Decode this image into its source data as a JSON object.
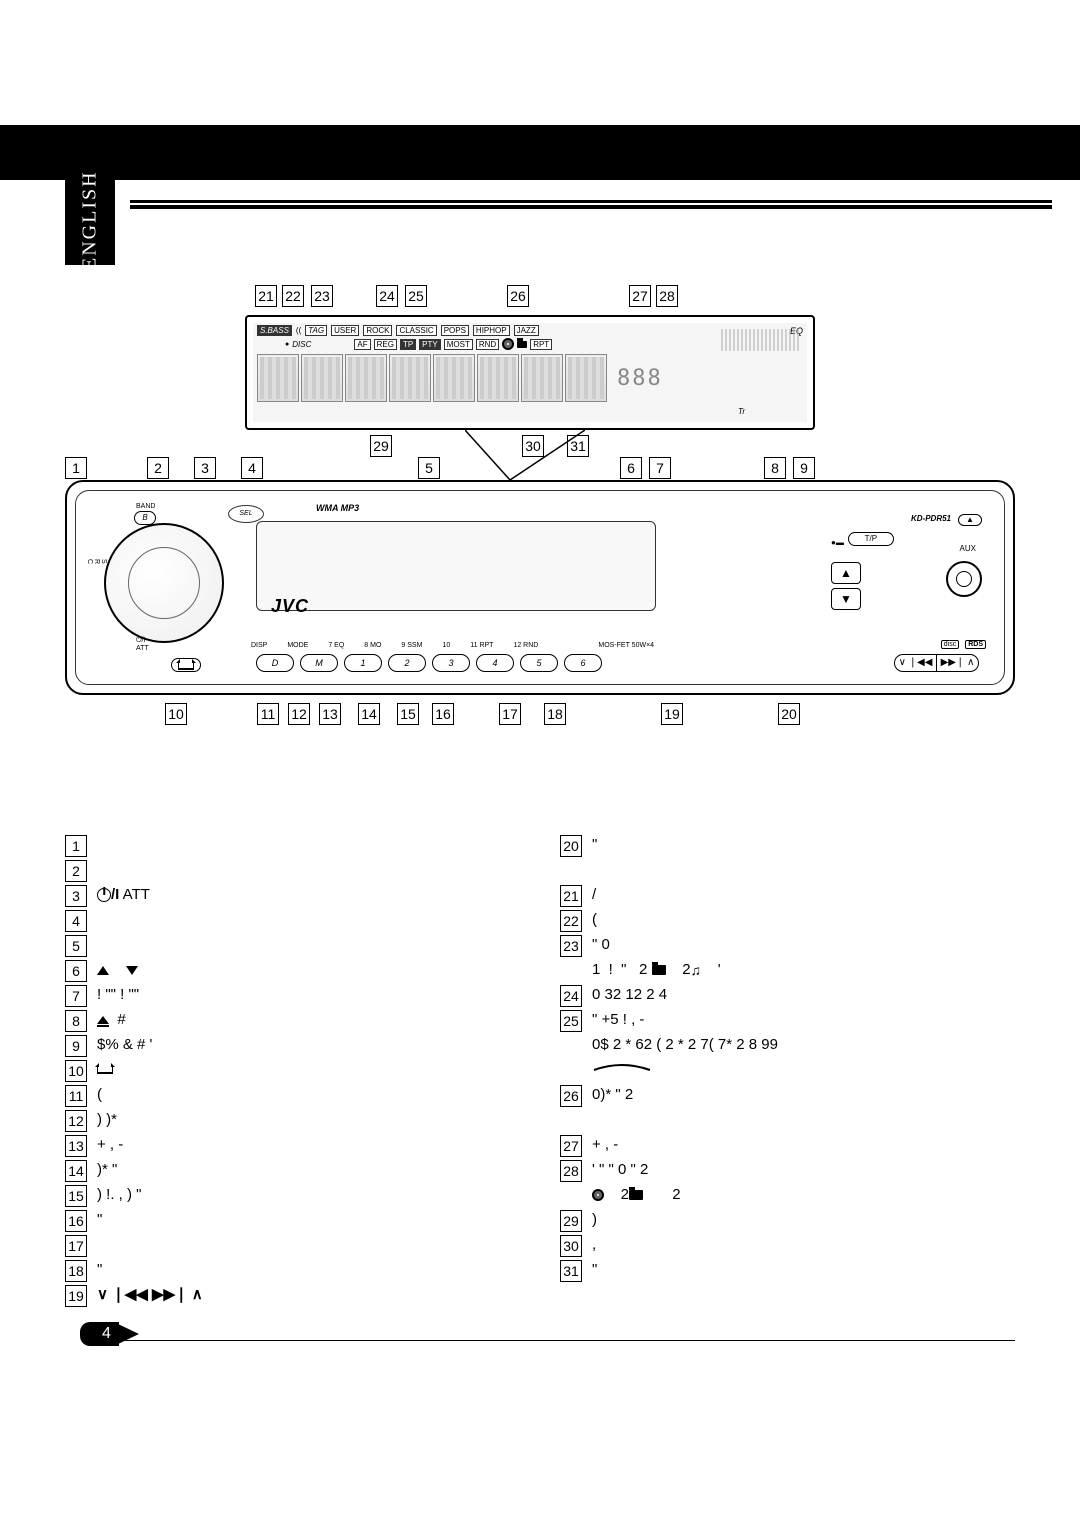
{
  "lang_tab": "ENGLISH",
  "page_number": "4",
  "display": {
    "sbass": "S.BASS",
    "tag": "TAG",
    "user": "USER",
    "rock": "ROCK",
    "classic": "CLASSIC",
    "pops": "POPS",
    "hiphop": "HIPHOP",
    "jazz": "JAZZ",
    "eq": "EQ",
    "disc": "DISC",
    "af": "AF",
    "reg": "REG",
    "tp": "TP",
    "pty": "PTY",
    "most": "MOST",
    "rnd": "RND",
    "rpt": "RPT",
    "tr": "Tr",
    "small_digits": "888"
  },
  "receiver": {
    "brand": "JVC",
    "wma_mp3": "WMA MP3",
    "band": "BAND",
    "b_btn": "B",
    "sel": "SEL",
    "src": "S R C",
    "att": "ATT",
    "power_att": "⏻/I",
    "release": "⏏",
    "model": "KD-PDR51",
    "eject": "▲",
    "tp_btn": "T/P",
    "aux": "AUX",
    "disp": "DISP",
    "mode": "MODE",
    "btn_d": "D",
    "btn_m": "M",
    "btns": [
      "1",
      "2",
      "3",
      "4",
      "5",
      "6"
    ],
    "bottom_labels": [
      "7 EQ",
      "8 MO",
      "9 SSM",
      "10",
      "11 RPT",
      "12 RND"
    ],
    "mos_fet": "MOS-FET 50W×4",
    "skip_prev": "∨ ❘◀◀",
    "skip_next": "▶▶❘ ∧",
    "cd": "CD",
    "rds": "RDS"
  },
  "callouts": {
    "top_display": [
      "21",
      "22",
      "23",
      "24",
      "25",
      "26",
      "27",
      "28"
    ],
    "bottom_display": [
      "29",
      "30",
      "31"
    ],
    "top_receiver": [
      "1",
      "2",
      "3",
      "4",
      "5",
      "6",
      "7",
      "8",
      "9"
    ],
    "bottom_receiver": [
      "10",
      "11",
      "12",
      "13",
      "14",
      "15",
      "16",
      "17",
      "18",
      "19",
      "20"
    ]
  },
  "legend_left": [
    {
      "num": "1",
      "text": ""
    },
    {
      "num": "2",
      "text": ""
    },
    {
      "num": "3",
      "text": "ATT",
      "power": true
    },
    {
      "num": "4",
      "text": ""
    },
    {
      "num": "5",
      "text": ""
    },
    {
      "num": "6",
      "text": "",
      "updown": true
    },
    {
      "num": "7",
      "text": "!   \"\"   !   \"\""
    },
    {
      "num": "8",
      "text": "#",
      "eject": true
    },
    {
      "num": "9",
      "text": "$%   &         # '"
    },
    {
      "num": "10",
      "text": "",
      "release": true
    },
    {
      "num": "11",
      "text": "("
    },
    {
      "num": "12",
      "text": ") )*"
    },
    {
      "num": "13",
      "text": "+  ,   -"
    },
    {
      "num": "14",
      "text": ")*  \""
    },
    {
      "num": "15",
      "text": ")  !.      ,      ) \""
    },
    {
      "num": "16",
      "text": "\""
    },
    {
      "num": "17",
      "text": ""
    },
    {
      "num": "18",
      "text": "\""
    },
    {
      "num": "19",
      "text": "",
      "skip": true
    }
  ],
  "legend_right": [
    {
      "num": "20",
      "text": "\""
    },
    {
      "num": "",
      "text": ""
    },
    {
      "num": "21",
      "text": "/"
    },
    {
      "num": "22",
      "text": "("
    },
    {
      "num": "23",
      "text": "\"           0"
    },
    {
      "num": "",
      "text": "1  !  \"   2       2       '",
      "folder_note": true
    },
    {
      "num": "24",
      "text": "0 32  12  2   4"
    },
    {
      "num": "25",
      "text": "\"      +5      !   ,   -"
    },
    {
      "num": "",
      "text": "0$   2 * 62     ( 2 * 2 7( 7* 2 8 99"
    },
    {
      "num": "",
      "text": "",
      "curve": true
    },
    {
      "num": "26",
      "text": "0)*  \"       2"
    },
    {
      "num": "",
      "text": ""
    },
    {
      "num": "27",
      "text": "+  ,   -"
    },
    {
      "num": "28",
      "text": "' \"      \"          0        \" 2"
    },
    {
      "num": "",
      "text": "2           2",
      "disc_folder": true
    },
    {
      "num": "29",
      "text": ")"
    },
    {
      "num": "30",
      "text": ","
    },
    {
      "num": "31",
      "text": "\""
    }
  ]
}
